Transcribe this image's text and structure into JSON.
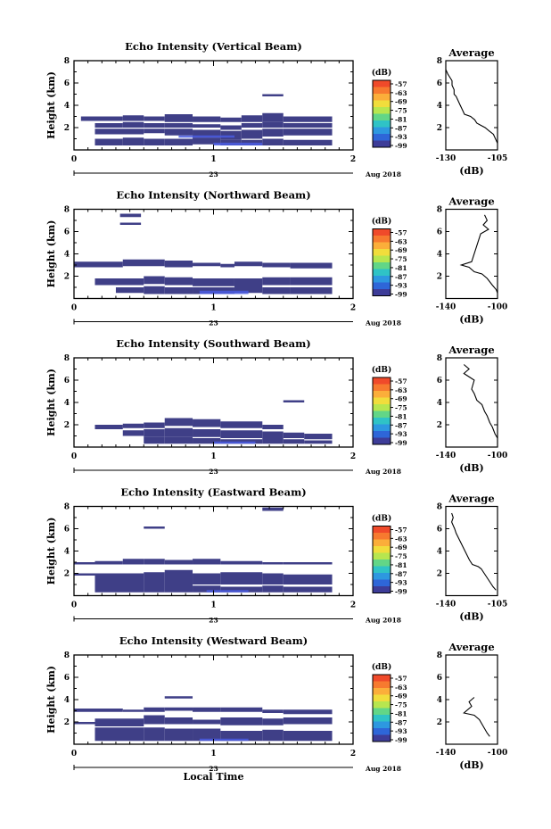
{
  "figure": {
    "xlabel_bottom": "Local Time",
    "day_label": "23",
    "month_label": "Aug 2018",
    "x_ticks": [
      "0",
      "1",
      "2"
    ],
    "colorbar_unit": "(dB)",
    "colorbar_levels": [
      "-57",
      "-63",
      "-69",
      "-75",
      "-81",
      "-87",
      "-93",
      "-99"
    ],
    "colorbar_colors": [
      "#f04a2a",
      "#f77a2f",
      "#fbae3a",
      "#f1dd3c",
      "#b7e64f",
      "#62d687",
      "#2fc3c6",
      "#2d98e0",
      "#2e66d8",
      "#3d3c98"
    ],
    "profile_title": "Average",
    "profile_xlabel": "(dB)",
    "cell_color": "#3f3f87",
    "accent_color": "#4a5ce0"
  },
  "chart_data": [
    {
      "type": "heatmap",
      "title": "Echo Intensity (Vertical Beam)",
      "ylabel": "Height (km)",
      "xlim": [
        0,
        2
      ],
      "ylim": [
        0,
        8
      ],
      "y_ticks": [
        "2",
        "4",
        "6",
        "8"
      ],
      "cells": [
        [
          0.05,
          0.35,
          2.6,
          3.0
        ],
        [
          0.35,
          0.5,
          2.6,
          3.1
        ],
        [
          0.5,
          0.65,
          2.6,
          3.0
        ],
        [
          0.65,
          0.85,
          2.5,
          3.2
        ],
        [
          0.85,
          1.05,
          2.5,
          3.0
        ],
        [
          1.05,
          1.2,
          2.5,
          2.9
        ],
        [
          1.2,
          1.35,
          2.5,
          3.1
        ],
        [
          1.35,
          1.5,
          2.5,
          3.3
        ],
        [
          1.5,
          1.85,
          2.5,
          3.0
        ],
        [
          0.15,
          0.35,
          2.0,
          2.4
        ],
        [
          0.35,
          0.5,
          2.0,
          2.5
        ],
        [
          0.5,
          0.65,
          2.0,
          2.4
        ],
        [
          0.65,
          0.85,
          2.0,
          2.4
        ],
        [
          0.85,
          1.05,
          2.0,
          2.3
        ],
        [
          1.05,
          1.2,
          1.8,
          2.2
        ],
        [
          1.2,
          1.35,
          2.0,
          2.4
        ],
        [
          1.35,
          1.5,
          2.0,
          2.5
        ],
        [
          1.5,
          1.85,
          2.0,
          2.4
        ],
        [
          0.15,
          0.5,
          1.4,
          1.9
        ],
        [
          0.5,
          0.65,
          1.5,
          1.9
        ],
        [
          0.65,
          0.85,
          1.3,
          1.9
        ],
        [
          0.85,
          1.05,
          1.1,
          1.8
        ],
        [
          1.05,
          1.2,
          0.9,
          1.7
        ],
        [
          1.2,
          1.35,
          1.0,
          1.8
        ],
        [
          1.35,
          1.5,
          1.2,
          1.9
        ],
        [
          1.5,
          1.85,
          1.3,
          1.9
        ],
        [
          0.15,
          0.35,
          0.4,
          1.0
        ],
        [
          0.35,
          0.5,
          0.4,
          1.1
        ],
        [
          0.5,
          0.65,
          0.4,
          1.0
        ],
        [
          0.65,
          0.85,
          0.4,
          1.0
        ],
        [
          0.85,
          1.05,
          0.5,
          1.1
        ],
        [
          1.05,
          1.2,
          0.4,
          0.9
        ],
        [
          1.2,
          1.35,
          0.4,
          0.9
        ],
        [
          1.35,
          1.5,
          0.4,
          1.0
        ],
        [
          1.5,
          1.85,
          0.4,
          0.9
        ],
        [
          1.35,
          1.5,
          4.8,
          5.0
        ]
      ],
      "accents": [
        [
          0.75,
          1.15,
          1.1,
          1.3
        ],
        [
          1.0,
          1.35,
          0.4,
          0.65
        ]
      ],
      "profile": {
        "xlim": [
          -130,
          -105
        ],
        "x_ticks": [
          "-130",
          "-105"
        ],
        "y_ticks": [
          "2",
          "4",
          "6",
          "8"
        ],
        "points": [
          [
            -130,
            7.2
          ],
          [
            -129,
            6.8
          ],
          [
            -127,
            6.2
          ],
          [
            -127,
            5.8
          ],
          [
            -126,
            5.4
          ],
          [
            -126,
            5.0
          ],
          [
            -125,
            4.8
          ],
          [
            -124,
            4.4
          ],
          [
            -123,
            4.0
          ],
          [
            -122,
            3.6
          ],
          [
            -121,
            3.2
          ],
          [
            -118,
            3.0
          ],
          [
            -116,
            2.7
          ],
          [
            -115,
            2.4
          ],
          [
            -113,
            2.2
          ],
          [
            -111,
            2.0
          ],
          [
            -109,
            1.7
          ],
          [
            -107,
            1.4
          ],
          [
            -106,
            1.0
          ],
          [
            -105,
            0.6
          ]
        ]
      }
    },
    {
      "type": "heatmap",
      "title": "Echo Intensity (Northward Beam)",
      "ylabel": "Height (km)",
      "xlim": [
        0,
        2
      ],
      "ylim": [
        0,
        8
      ],
      "y_ticks": [
        "2",
        "4",
        "6",
        "8"
      ],
      "cells": [
        [
          0.0,
          0.35,
          2.8,
          3.3
        ],
        [
          0.35,
          0.65,
          2.9,
          3.5
        ],
        [
          0.65,
          0.85,
          2.8,
          3.4
        ],
        [
          0.85,
          1.05,
          2.9,
          3.2
        ],
        [
          1.05,
          1.15,
          2.8,
          3.1
        ],
        [
          1.15,
          1.35,
          2.9,
          3.3
        ],
        [
          1.35,
          1.55,
          2.8,
          3.2
        ],
        [
          1.55,
          1.85,
          2.7,
          3.2
        ],
        [
          0.15,
          0.5,
          1.2,
          1.8
        ],
        [
          0.5,
          0.65,
          1.3,
          2.0
        ],
        [
          0.65,
          0.85,
          1.2,
          1.9
        ],
        [
          0.85,
          1.15,
          1.1,
          1.8
        ],
        [
          1.15,
          1.35,
          1.0,
          1.8
        ],
        [
          1.35,
          1.55,
          1.2,
          1.9
        ],
        [
          1.55,
          1.85,
          1.2,
          1.9
        ],
        [
          0.3,
          0.5,
          0.5,
          1.0
        ],
        [
          0.5,
          0.65,
          0.4,
          1.1
        ],
        [
          0.65,
          0.85,
          0.4,
          1.0
        ],
        [
          0.85,
          1.15,
          0.4,
          1.0
        ],
        [
          1.15,
          1.35,
          0.5,
          1.0
        ],
        [
          1.35,
          1.55,
          0.4,
          1.0
        ],
        [
          1.55,
          1.85,
          0.4,
          1.0
        ],
        [
          0.33,
          0.48,
          7.3,
          7.6
        ],
        [
          0.33,
          0.48,
          6.6,
          6.8
        ]
      ],
      "accents": [
        [
          0.9,
          1.25,
          0.4,
          0.7
        ]
      ],
      "profile": {
        "xlim": [
          -140,
          -100
        ],
        "x_ticks": [
          "-140",
          "-100"
        ],
        "y_ticks": [
          "2",
          "4",
          "6",
          "8"
        ],
        "points": [
          [
            -110,
            7.5
          ],
          [
            -108,
            7.0
          ],
          [
            -111,
            6.6
          ],
          [
            -107,
            6.2
          ],
          [
            -113,
            5.8
          ],
          [
            -120,
            3.3
          ],
          [
            -128,
            3.0
          ],
          [
            -122,
            2.8
          ],
          [
            -118,
            2.4
          ],
          [
            -112,
            2.2
          ],
          [
            -108,
            1.8
          ],
          [
            -104,
            1.2
          ],
          [
            -101,
            0.8
          ],
          [
            -100,
            0.5
          ]
        ]
      }
    },
    {
      "type": "heatmap",
      "title": "Echo Intensity (Southward Beam)",
      "ylabel": "Height (km)",
      "xlim": [
        0,
        2
      ],
      "ylim": [
        0,
        8
      ],
      "y_ticks": [
        "2",
        "4",
        "6",
        "8"
      ],
      "cells": [
        [
          0.15,
          0.35,
          1.6,
          2.0
        ],
        [
          0.35,
          0.5,
          1.7,
          2.1
        ],
        [
          0.5,
          0.65,
          1.7,
          2.2
        ],
        [
          0.65,
          0.85,
          1.9,
          2.6
        ],
        [
          0.85,
          1.05,
          1.8,
          2.5
        ],
        [
          1.05,
          1.35,
          1.7,
          2.3
        ],
        [
          1.35,
          1.5,
          1.6,
          2.0
        ],
        [
          0.35,
          0.5,
          1.0,
          1.5
        ],
        [
          0.5,
          0.65,
          0.9,
          1.6
        ],
        [
          0.65,
          0.85,
          0.9,
          1.7
        ],
        [
          0.85,
          1.05,
          0.9,
          1.6
        ],
        [
          1.05,
          1.35,
          0.8,
          1.5
        ],
        [
          1.35,
          1.5,
          0.8,
          1.4
        ],
        [
          1.5,
          1.65,
          0.8,
          1.3
        ],
        [
          1.65,
          1.85,
          0.7,
          1.2
        ],
        [
          0.5,
          0.65,
          0.3,
          0.9
        ],
        [
          0.65,
          0.85,
          0.3,
          0.9
        ],
        [
          0.85,
          1.05,
          0.3,
          0.8
        ],
        [
          1.05,
          1.35,
          0.3,
          0.7
        ],
        [
          1.35,
          1.5,
          0.3,
          0.8
        ],
        [
          1.5,
          1.65,
          0.3,
          0.7
        ],
        [
          1.65,
          1.85,
          0.3,
          0.6
        ],
        [
          1.5,
          1.65,
          4.0,
          4.2
        ]
      ],
      "accents": [
        [
          1.0,
          1.3,
          0.3,
          0.5
        ]
      ],
      "profile": {
        "xlim": [
          -140,
          -100
        ],
        "x_ticks": [
          "-140",
          "-100"
        ],
        "y_ticks": [
          "2",
          "4",
          "6",
          "8"
        ],
        "points": [
          [
            -126,
            7.4
          ],
          [
            -122,
            7.0
          ],
          [
            -126,
            6.6
          ],
          [
            -118,
            6.0
          ],
          [
            -120,
            5.2
          ],
          [
            -118,
            4.8
          ],
          [
            -116,
            4.2
          ],
          [
            -112,
            3.8
          ],
          [
            -110,
            3.2
          ],
          [
            -108,
            2.8
          ],
          [
            -106,
            2.2
          ],
          [
            -104,
            1.8
          ],
          [
            -102,
            1.2
          ],
          [
            -100,
            0.8
          ]
        ]
      }
    },
    {
      "type": "heatmap",
      "title": "Echo Intensity (Eastward Beam)",
      "ylabel": "Height (km)",
      "xlim": [
        0,
        2
      ],
      "ylim": [
        0,
        8
      ],
      "y_ticks": [
        "2",
        "4",
        "6",
        "8"
      ],
      "cells": [
        [
          0.0,
          0.15,
          2.8,
          3.0
        ],
        [
          0.15,
          0.35,
          2.8,
          3.1
        ],
        [
          0.35,
          0.5,
          2.8,
          3.3
        ],
        [
          0.5,
          0.65,
          2.8,
          3.3
        ],
        [
          0.65,
          0.85,
          2.8,
          3.2
        ],
        [
          0.85,
          1.05,
          2.8,
          3.3
        ],
        [
          1.05,
          1.35,
          2.8,
          3.1
        ],
        [
          1.35,
          1.5,
          2.8,
          3.0
        ],
        [
          1.5,
          1.85,
          2.8,
          3.0
        ],
        [
          0.0,
          0.15,
          1.8,
          2.0
        ],
        [
          0.15,
          0.5,
          1.0,
          2.0
        ],
        [
          0.5,
          0.65,
          1.0,
          2.1
        ],
        [
          0.65,
          0.85,
          1.0,
          2.3
        ],
        [
          0.85,
          1.05,
          1.0,
          2.0
        ],
        [
          1.05,
          1.35,
          1.0,
          2.1
        ],
        [
          1.35,
          1.5,
          1.0,
          2.0
        ],
        [
          1.5,
          1.85,
          1.0,
          1.9
        ],
        [
          0.15,
          0.5,
          0.3,
          1.0
        ],
        [
          0.5,
          0.65,
          0.3,
          1.0
        ],
        [
          0.65,
          0.85,
          0.3,
          1.0
        ],
        [
          0.85,
          1.05,
          0.3,
          0.9
        ],
        [
          1.05,
          1.35,
          0.3,
          0.8
        ],
        [
          1.35,
          1.5,
          0.3,
          0.9
        ],
        [
          1.5,
          1.85,
          0.3,
          0.8
        ],
        [
          0.5,
          0.65,
          6.0,
          6.2
        ],
        [
          1.35,
          1.5,
          7.6,
          7.9
        ]
      ],
      "accents": [
        [
          0.95,
          1.25,
          0.3,
          0.5
        ]
      ],
      "profile": {
        "xlim": [
          -140,
          -105
        ],
        "x_ticks": [
          "-140",
          "-105"
        ],
        "y_ticks": [
          "2",
          "4",
          "6",
          "8"
        ],
        "points": [
          [
            -136,
            7.4
          ],
          [
            -135,
            7.0
          ],
          [
            -136,
            6.6
          ],
          [
            -134,
            6.0
          ],
          [
            -133,
            5.6
          ],
          [
            -124,
            3.2
          ],
          [
            -122,
            2.8
          ],
          [
            -118,
            2.6
          ],
          [
            -116,
            2.4
          ],
          [
            -114,
            2.0
          ],
          [
            -112,
            1.6
          ],
          [
            -110,
            1.2
          ],
          [
            -108,
            0.8
          ],
          [
            -106,
            0.5
          ]
        ]
      }
    },
    {
      "type": "heatmap",
      "title": "Echo Intensity (Westward Beam)",
      "ylabel": "Height (km)",
      "xlim": [
        0,
        2
      ],
      "ylim": [
        0,
        8
      ],
      "y_ticks": [
        "2",
        "4",
        "6",
        "8"
      ],
      "cells": [
        [
          0.0,
          0.35,
          2.9,
          3.2
        ],
        [
          0.35,
          0.5,
          2.9,
          3.1
        ],
        [
          0.5,
          0.65,
          2.9,
          3.3
        ],
        [
          0.65,
          0.85,
          3.0,
          3.3
        ],
        [
          0.85,
          1.05,
          2.9,
          3.3
        ],
        [
          1.05,
          1.35,
          2.9,
          3.3
        ],
        [
          1.35,
          1.5,
          2.8,
          3.1
        ],
        [
          1.5,
          1.85,
          2.7,
          3.1
        ],
        [
          0.0,
          0.15,
          1.8,
          2.0
        ],
        [
          0.15,
          0.5,
          1.6,
          2.3
        ],
        [
          0.5,
          0.65,
          1.8,
          2.6
        ],
        [
          0.65,
          0.85,
          1.8,
          2.4
        ],
        [
          0.85,
          1.05,
          1.8,
          2.2
        ],
        [
          1.05,
          1.35,
          1.7,
          2.4
        ],
        [
          1.35,
          1.5,
          1.7,
          2.3
        ],
        [
          1.5,
          1.85,
          1.8,
          2.4
        ],
        [
          0.15,
          0.5,
          0.3,
          1.5
        ],
        [
          0.5,
          0.65,
          0.3,
          1.5
        ],
        [
          0.65,
          0.85,
          0.3,
          1.4
        ],
        [
          0.85,
          1.05,
          0.3,
          1.4
        ],
        [
          1.05,
          1.35,
          0.3,
          1.2
        ],
        [
          1.35,
          1.5,
          0.3,
          1.3
        ],
        [
          1.5,
          1.85,
          0.3,
          1.2
        ],
        [
          0.65,
          0.85,
          4.1,
          4.3
        ]
      ],
      "accents": [
        [
          0.9,
          1.25,
          0.3,
          0.5
        ]
      ],
      "profile": {
        "xlim": [
          -140,
          -100
        ],
        "x_ticks": [
          "-140",
          "-100"
        ],
        "y_ticks": [
          "2",
          "4",
          "6",
          "8"
        ],
        "points": [
          [
            -118,
            4.2
          ],
          [
            -122,
            3.8
          ],
          [
            -120,
            3.4
          ],
          [
            -126,
            2.8
          ],
          [
            -118,
            2.6
          ],
          [
            -114,
            2.2
          ],
          [
            -112,
            1.8
          ],
          [
            -110,
            1.4
          ],
          [
            -108,
            1.0
          ],
          [
            -106,
            0.7
          ]
        ]
      }
    }
  ]
}
